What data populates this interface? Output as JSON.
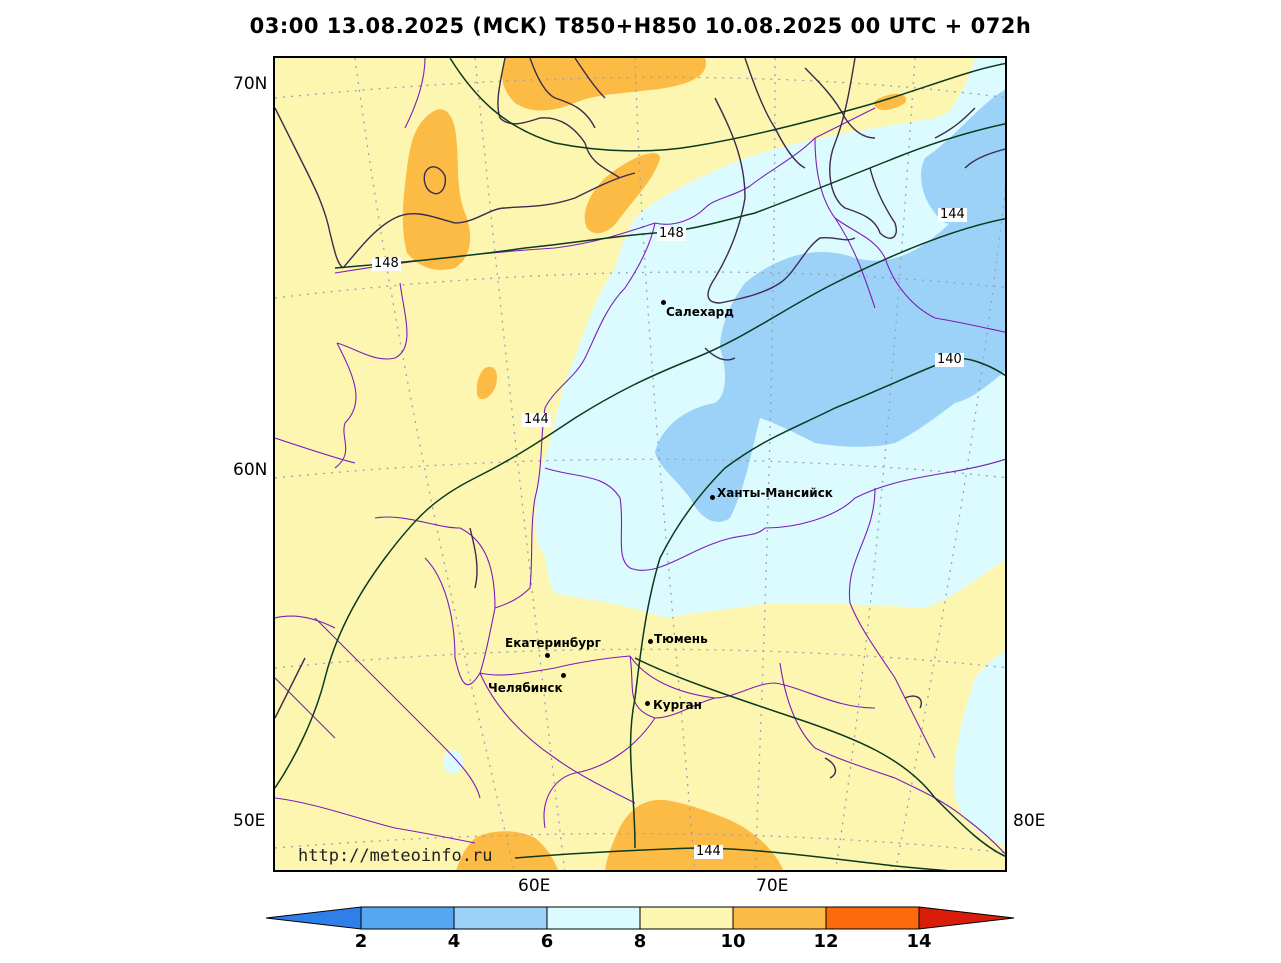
{
  "title": "03:00 13.08.2025 (МСК) T850+H850 10.08.2025 00 UTC + 072h",
  "watermark": "http://meteoinfo.ru",
  "lat_labels": [
    "70N",
    "60N",
    "50E"
  ],
  "lon_labels": [
    "60E",
    "70E",
    "80E"
  ],
  "cities": [
    {
      "name": "Салехард"
    },
    {
      "name": "Ханты-Мансийск"
    },
    {
      "name": "Екатеринбург"
    },
    {
      "name": "Тюмень"
    },
    {
      "name": "Челябинск"
    },
    {
      "name": "Курган"
    }
  ],
  "contour_labels": [
    "148",
    "148",
    "144",
    "144",
    "140",
    "144"
  ],
  "colorbar": {
    "ticks": [
      "2",
      "4",
      "6",
      "8",
      "10",
      "12",
      "14"
    ],
    "colors": [
      "#2f7fe8",
      "#55a7f2",
      "#9cd1f8",
      "#dcfbff",
      "#fdf6b0",
      "#fbbb44",
      "#fc6a0b",
      "#d81e0a"
    ]
  },
  "colors": {
    "t_6_8": "#dcfbff",
    "t_4_6": "#9cd1f8",
    "t_8_10": "#fdf6b0",
    "t_10_12": "#fbbb44",
    "boundaries": "#7a1fb8",
    "coast": "#3b2b4e",
    "contours": "#0b3a1e"
  }
}
